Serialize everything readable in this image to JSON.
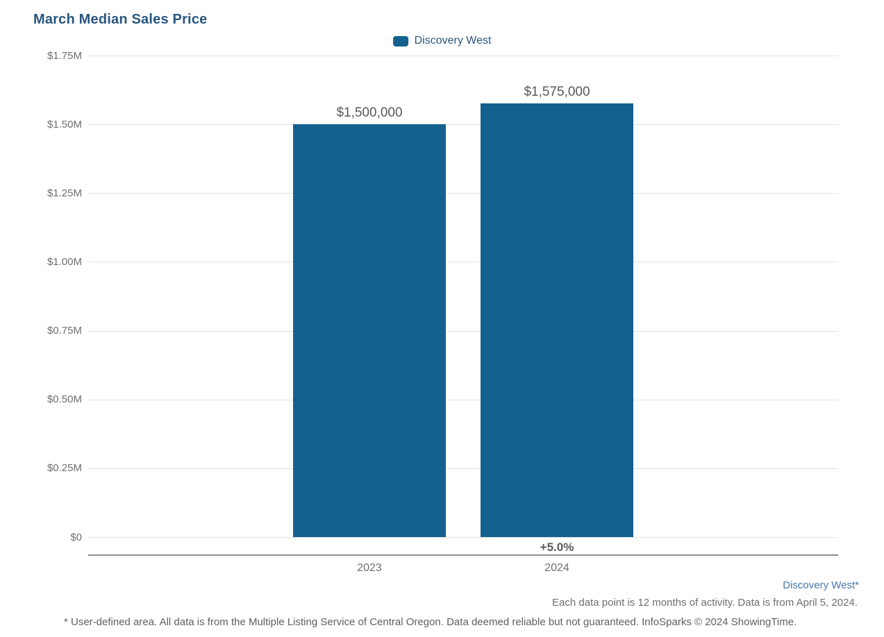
{
  "chart_data": {
    "type": "bar",
    "title": "March Median Sales Price",
    "categories": [
      "2023",
      "2024"
    ],
    "series": [
      {
        "name": "Discovery West",
        "color": "#14618F",
        "values": [
          1500000,
          1575000
        ],
        "value_labels": [
          "$1,500,000",
          "$1,575,000"
        ]
      }
    ],
    "annotations": [
      {
        "text": "+5.0%",
        "category": "2024",
        "position": "below-axis"
      }
    ],
    "xlabel": "",
    "ylabel": "",
    "ylim": [
      0,
      1750000
    ],
    "yticks": [
      {
        "value": 1750000,
        "label": "$1.75M"
      },
      {
        "value": 1500000,
        "label": "$1.50M"
      },
      {
        "value": 1250000,
        "label": "$1.25M"
      },
      {
        "value": 1000000,
        "label": "$1.00M"
      },
      {
        "value": 750000,
        "label": "$0.75M"
      },
      {
        "value": 500000,
        "label": "$0.50M"
      },
      {
        "value": 250000,
        "label": "$0.25M"
      },
      {
        "value": 0,
        "label": "$0"
      }
    ],
    "grid": true,
    "legend_position": "top-center"
  },
  "footer": {
    "area_link": "Discovery West*",
    "note": "Each data point is 12 months of activity. Data is from April 5, 2024.",
    "disclaimer": "* User-defined area. All data is from the Multiple Listing Service of Central Oregon. Data deemed reliable but not guaranteed. InfoSparks © 2024 ShowingTime."
  },
  "colors": {
    "bar": "#14618F",
    "title": "#28567F",
    "legend_text": "#28567F",
    "axis_label": "#6E6E6E",
    "value_label": "#58585A",
    "annotation": "#595959",
    "gridline": "#E4E4E4",
    "axis_line": "#8C8C8C",
    "footer_link": "#4776AE",
    "footer_note": "#6E6E6E",
    "disclaimer": "#5F5F5F"
  }
}
